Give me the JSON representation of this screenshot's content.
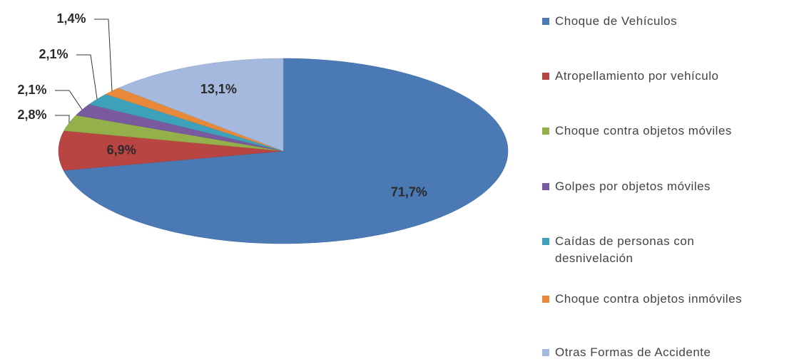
{
  "chart_data": {
    "type": "pie",
    "categories": [
      "Choque de Vehículos",
      "Atropellamiento por vehículo",
      "Choque contra objetos móviles",
      "Golpes por objetos móviles",
      "Caídas de personas con desnivelación",
      "Choque contra objetos inmóviles",
      "Otras Formas de Accidente"
    ],
    "values": [
      71.7,
      6.9,
      2.8,
      2.1,
      2.1,
      1.4,
      13.1
    ],
    "value_labels": [
      "71,7%",
      "6,9%",
      "2,8%",
      "2,1%",
      "2,1%",
      "1,4%",
      "13,1%"
    ],
    "colors": [
      "#4a79b4",
      "#b84542",
      "#93b04a",
      "#7a5a9f",
      "#3ea1bc",
      "#e8893a",
      "#a4b9dd"
    ],
    "legend": "right"
  }
}
